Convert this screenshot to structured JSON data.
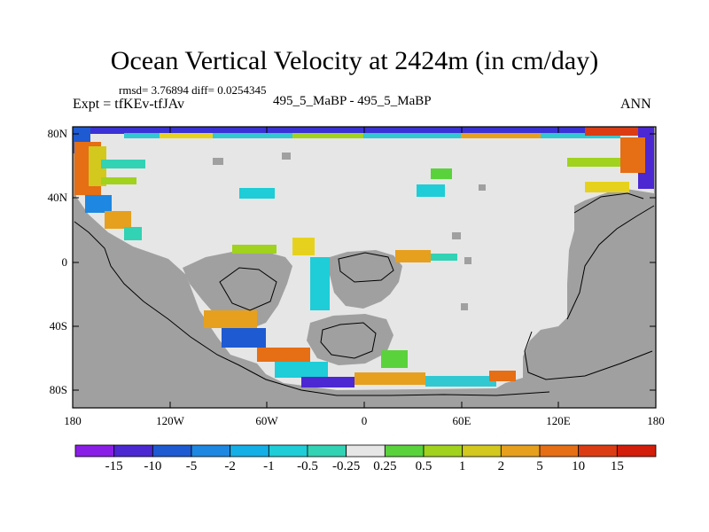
{
  "title": "Ocean Vertical Velocity at 2424m (in cm/day)",
  "stats": "rmsd= 3.76894 diff= 0.0254345",
  "expt": "Expt = tfKEv-tfJAv",
  "cases": "495_5_MaBP - 495_5_MaBP",
  "season": "ANN",
  "lat_labels": [
    "80N",
    "40N",
    "0",
    "40S",
    "80S"
  ],
  "lon_labels": [
    "180",
    "120W",
    "60W",
    "0",
    "60E",
    "120E",
    "180"
  ],
  "colorbar": {
    "labels": [
      "-15",
      "-10",
      "-5",
      "-2",
      "-1",
      "-0.5",
      "-0.25",
      "0.25",
      "0.5",
      "1",
      "2",
      "5",
      "10",
      "15"
    ],
    "colors": [
      "#8a1ee6",
      "#4b28d2",
      "#1e5ad2",
      "#1e87e1",
      "#14afe6",
      "#1ecdd7",
      "#32d2b4",
      "#e6e6e6",
      "#5ad23c",
      "#a0d21e",
      "#d2c81e",
      "#e6a01e",
      "#e66e14",
      "#dc3c14",
      "#d21e0a"
    ]
  },
  "colors": {
    "land": "#a0a0a0",
    "near_zero": "#e6e6e6",
    "coast": "#000000"
  }
}
